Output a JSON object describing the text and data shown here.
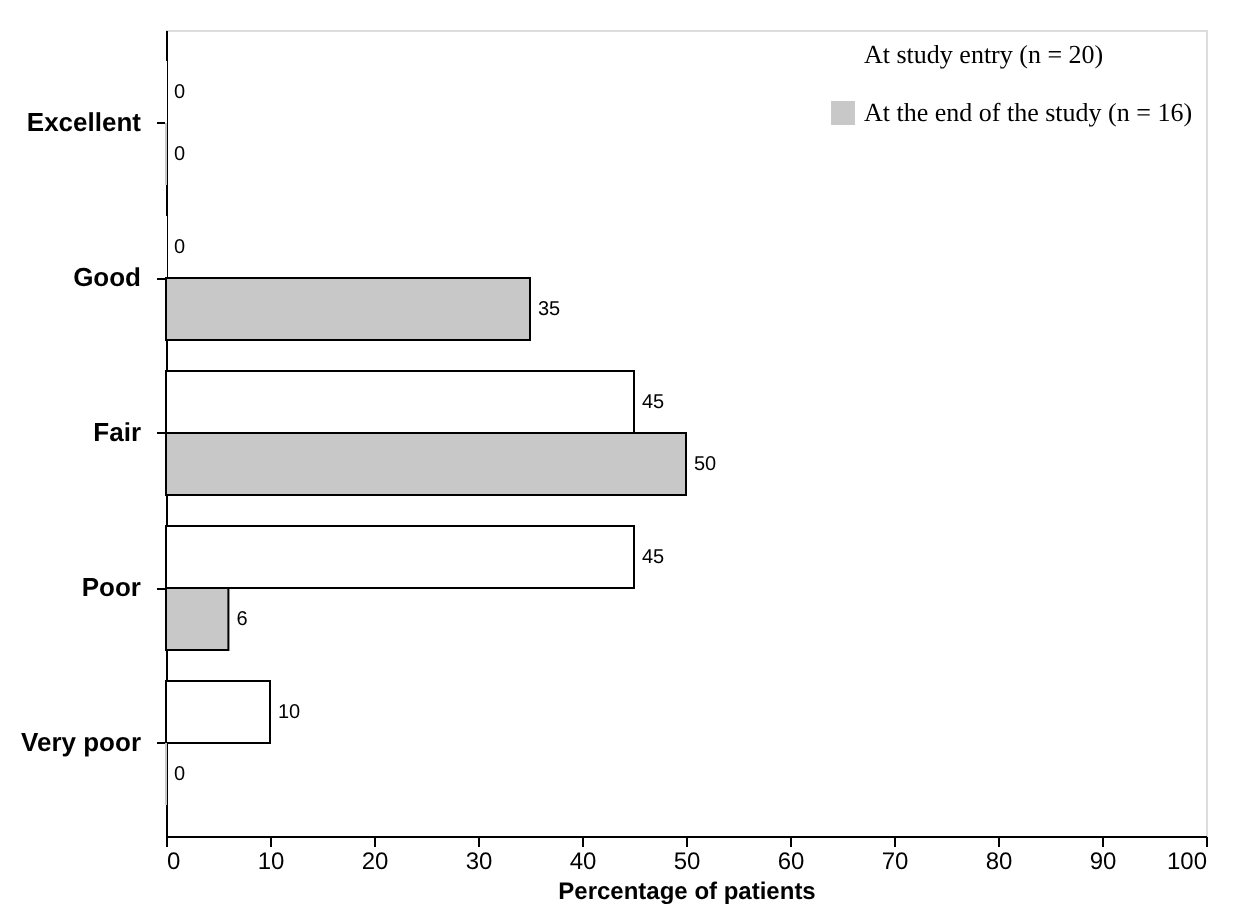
{
  "chart_data": {
    "type": "bar",
    "orientation": "horizontal",
    "xlabel": "Percentage of patients",
    "categories": [
      "Excellent",
      "Good",
      "Fair",
      "Poor",
      "Very poor"
    ],
    "series": [
      {
        "name": "At study entry (n = 20)",
        "color": "#ffffff",
        "values": [
          0,
          0,
          45,
          45,
          10
        ]
      },
      {
        "name": "At the end of the study (n = 16)",
        "color": "#c8c8c8",
        "values": [
          0,
          35,
          50,
          6,
          0
        ]
      }
    ],
    "xlim": [
      0,
      100
    ],
    "xticks": [
      0,
      10,
      20,
      30,
      40,
      50,
      60,
      70,
      80,
      90,
      100
    ],
    "data_labels": true,
    "grid": false,
    "legend": "top right"
  }
}
